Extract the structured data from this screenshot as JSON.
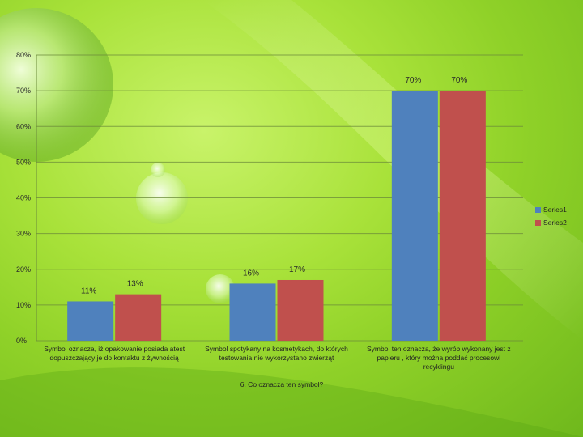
{
  "chart_data": {
    "type": "bar",
    "categories": [
      [
        "Symbol oznacza, iż opakowanie posiada atest",
        "dopuszczający je do kontaktu z żywnością"
      ],
      [
        "Symbol spotykany na kosmetykach, do których",
        "testowania nie wykorzystano zwierząt"
      ],
      [
        "Symbol ten oznacza, że wyrób wykonany jest z",
        "papieru , który można poddać procesowi",
        "recyklingu"
      ]
    ],
    "series": [
      {
        "name": "Series1",
        "values": [
          11,
          16,
          70
        ],
        "labels": [
          "11%",
          "16%",
          "70%"
        ],
        "color": "#4f81bd"
      },
      {
        "name": "Series2",
        "values": [
          13,
          17,
          70
        ],
        "labels": [
          "13%",
          "17%",
          "70%"
        ],
        "color": "#c0504d"
      }
    ],
    "title": "",
    "xlabel": "6. Co oznacza ten symbol?",
    "ylabel": "",
    "ylim": [
      0,
      80
    ],
    "yticks": [
      0,
      10,
      20,
      30,
      40,
      50,
      60,
      70,
      80
    ],
    "ytick_labels": [
      "0%",
      "10%",
      "20%",
      "30%",
      "40%",
      "50%",
      "60%",
      "70%",
      "80%"
    ],
    "grid": true,
    "legend": "right"
  }
}
